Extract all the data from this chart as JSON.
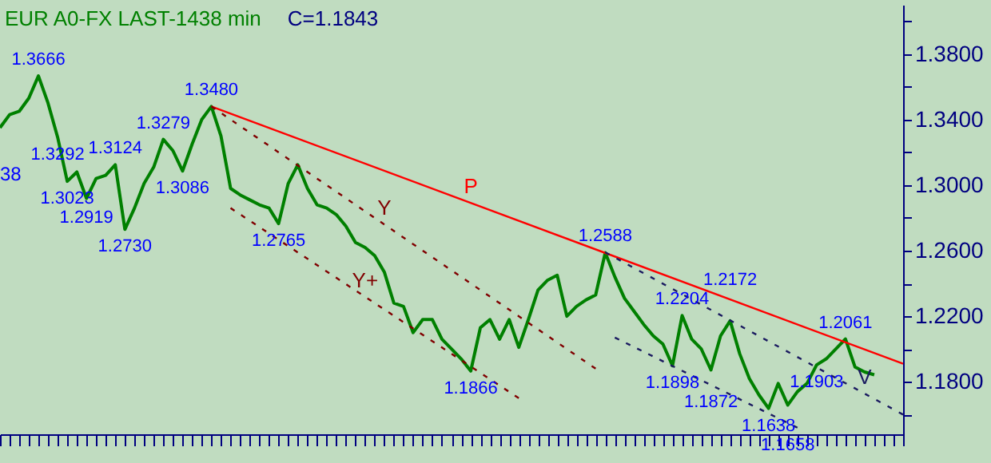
{
  "chart_data": {
    "type": "line",
    "title": "EUR A0-FX LAST-1438 min",
    "subtitle": "C=1.1843",
    "categories": [
      null,
      null,
      null,
      null,
      null,
      null,
      null,
      null,
      null,
      null,
      null,
      null,
      null,
      null,
      null,
      null,
      null,
      null,
      null,
      null,
      null,
      null,
      null,
      null,
      null,
      null,
      null,
      null,
      null,
      null,
      null,
      null,
      null,
      null,
      null,
      null,
      null,
      null,
      null,
      null,
      null,
      null,
      null,
      null,
      null,
      null,
      null,
      null,
      null,
      null,
      null,
      null,
      null,
      null,
      null,
      null,
      null,
      null,
      null,
      null,
      null,
      null,
      null,
      null,
      null,
      null,
      null,
      null,
      null,
      null,
      null,
      null,
      null,
      null,
      null,
      null,
      null,
      null,
      null,
      null,
      null,
      null,
      null,
      null,
      null,
      null,
      null,
      null,
      null,
      null,
      null,
      null,
      null,
      null,
      null
    ],
    "series": [
      {
        "color": "#008000",
        "values": [
          1.335,
          1.343,
          1.345,
          1.353,
          1.3666,
          1.35,
          1.3292,
          1.3023,
          1.308,
          1.2919,
          1.304,
          1.306,
          1.3124,
          1.273,
          1.286,
          1.301,
          1.311,
          1.3279,
          1.321,
          1.3086,
          1.325,
          1.34,
          1.348,
          1.33,
          1.298,
          1.294,
          1.291,
          1.288,
          1.286,
          1.2765,
          1.301,
          1.3124,
          1.298,
          1.288,
          1.286,
          1.282,
          1.275,
          1.265,
          1.262,
          1.257,
          1.247,
          1.228,
          1.226,
          1.21,
          1.218,
          1.218,
          1.206,
          1.2,
          1.194,
          1.1866,
          1.213,
          1.218,
          1.206,
          1.218,
          1.201,
          1.218,
          1.236,
          1.242,
          1.245,
          1.22,
          1.226,
          1.23,
          1.233,
          1.2588,
          1.244,
          1.231,
          1.223,
          1.215,
          1.208,
          1.203,
          1.1898,
          1.2204,
          1.206,
          1.2,
          1.1872,
          1.208,
          1.2172,
          1.197,
          1.182,
          1.172,
          1.1638,
          1.179,
          1.1658,
          1.174,
          1.179,
          1.1903,
          1.194,
          1.2,
          1.2061,
          1.189,
          1.186,
          1.1843,
          null,
          null,
          null
        ]
      },
      {
        "name": "P",
        "color": "#ff0000",
        "line_style": "solid",
        "values": [
          null,
          null,
          null,
          null,
          null,
          null,
          null,
          null,
          null,
          null,
          null,
          null,
          null,
          null,
          null,
          null,
          null,
          null,
          null,
          null,
          null,
          null,
          1.348,
          null,
          null,
          null,
          null,
          null,
          null,
          null,
          null,
          null,
          null,
          null,
          null,
          null,
          null,
          null,
          null,
          null,
          null,
          null,
          null,
          null,
          null,
          null,
          null,
          null,
          null,
          null,
          null,
          null,
          null,
          null,
          null,
          null,
          null,
          null,
          null,
          null,
          null,
          null,
          null,
          null,
          null,
          null,
          null,
          null,
          null,
          null,
          null,
          null,
          null,
          null,
          null,
          null,
          null,
          null,
          null,
          null,
          null,
          null,
          null,
          null,
          null,
          null,
          null,
          null,
          null,
          null,
          null,
          null,
          null,
          null,
          1.191
        ]
      },
      {
        "name": "Y",
        "color": "#800000",
        "line_style": "dashed",
        "values": [
          null,
          null,
          null,
          null,
          null,
          null,
          null,
          null,
          null,
          null,
          null,
          null,
          null,
          null,
          null,
          null,
          null,
          null,
          null,
          null,
          null,
          null,
          1.348,
          null,
          null,
          null,
          null,
          null,
          null,
          null,
          null,
          null,
          null,
          null,
          null,
          null,
          null,
          null,
          null,
          null,
          null,
          null,
          null,
          null,
          null,
          null,
          null,
          null,
          null,
          null,
          null,
          null,
          null,
          null,
          null,
          null,
          null,
          null,
          null,
          null,
          null,
          null,
          1.188,
          null,
          null,
          null,
          null,
          null,
          null,
          null,
          null,
          null,
          null,
          null,
          null,
          null,
          null,
          null,
          null,
          null,
          null,
          null,
          null,
          null,
          null,
          null,
          null,
          null,
          null,
          null,
          null,
          null,
          null,
          null,
          null
        ]
      },
      {
        "name": "Y+",
        "color": "#800000",
        "line_style": "dashed",
        "values": [
          null,
          null,
          null,
          null,
          null,
          null,
          null,
          null,
          null,
          null,
          null,
          null,
          null,
          null,
          null,
          null,
          null,
          null,
          null,
          null,
          null,
          null,
          null,
          null,
          1.286,
          null,
          null,
          null,
          null,
          null,
          null,
          null,
          null,
          null,
          null,
          null,
          null,
          null,
          null,
          null,
          null,
          null,
          null,
          null,
          null,
          null,
          null,
          null,
          null,
          null,
          null,
          null,
          null,
          null,
          1.17,
          null,
          null,
          null,
          null,
          null,
          null,
          null,
          null,
          null,
          null,
          null,
          null,
          null,
          null,
          null,
          null,
          null,
          null,
          null,
          null,
          null,
          null,
          null,
          null,
          null,
          null,
          null,
          null,
          null,
          null,
          null,
          null,
          null,
          null,
          null,
          null,
          null,
          null,
          null,
          null
        ]
      },
      {
        "name": "V",
        "color": "#1a1a60",
        "line_style": "dashed",
        "values": [
          null,
          null,
          null,
          null,
          null,
          null,
          null,
          null,
          null,
          null,
          null,
          null,
          null,
          null,
          null,
          null,
          null,
          null,
          null,
          null,
          null,
          null,
          null,
          null,
          null,
          null,
          null,
          null,
          null,
          null,
          null,
          null,
          null,
          null,
          null,
          null,
          null,
          null,
          null,
          null,
          null,
          null,
          null,
          null,
          null,
          null,
          null,
          null,
          null,
          null,
          null,
          null,
          null,
          null,
          null,
          null,
          null,
          null,
          null,
          null,
          null,
          null,
          null,
          1.259,
          null,
          null,
          null,
          null,
          null,
          null,
          null,
          null,
          null,
          null,
          null,
          null,
          null,
          null,
          null,
          null,
          null,
          null,
          null,
          null,
          null,
          null,
          null,
          null,
          null,
          null,
          null,
          null,
          null,
          null,
          1.16
        ]
      },
      {
        "color": "#1a1a60",
        "line_style": "dashed",
        "values": [
          null,
          null,
          null,
          null,
          null,
          null,
          null,
          null,
          null,
          null,
          null,
          null,
          null,
          null,
          null,
          null,
          null,
          null,
          null,
          null,
          null,
          null,
          null,
          null,
          null,
          null,
          null,
          null,
          null,
          null,
          null,
          null,
          null,
          null,
          null,
          null,
          null,
          null,
          null,
          null,
          null,
          null,
          null,
          null,
          null,
          null,
          null,
          null,
          null,
          null,
          null,
          null,
          null,
          null,
          null,
          null,
          null,
          null,
          null,
          null,
          null,
          null,
          null,
          null,
          1.207,
          null,
          null,
          null,
          null,
          null,
          null,
          null,
          null,
          null,
          null,
          null,
          null,
          null,
          null,
          null,
          null,
          null,
          null,
          1.152,
          null,
          null,
          null,
          null,
          null,
          null,
          null,
          null,
          null,
          null,
          null
        ]
      }
    ],
    "annotations": [
      {
        "text": "1.3666",
        "y": 1.3666
      },
      {
        "text": "1.3292",
        "y": 1.3292
      },
      {
        "text": "1.3023",
        "y": 1.3023
      },
      {
        "text": "1.3124",
        "y": 1.3124
      },
      {
        "text": "1.2919",
        "y": 1.2919
      },
      {
        "text": "1.2730",
        "y": 1.273
      },
      {
        "text": "1.3279",
        "y": 1.3279
      },
      {
        "text": "1.3086",
        "y": 1.3086
      },
      {
        "text": "1.3480",
        "y": 1.348
      },
      {
        "text": "1.2765",
        "y": 1.2765
      },
      {
        "text": "1.1866",
        "y": 1.1866
      },
      {
        "text": "1.2588",
        "y": 1.2588
      },
      {
        "text": "1.1898",
        "y": 1.1898
      },
      {
        "text": "1.2204",
        "y": 1.2204
      },
      {
        "text": "1.1872",
        "y": 1.1872
      },
      {
        "text": "1.2172",
        "y": 1.2172
      },
      {
        "text": "1.1638",
        "y": 1.1638
      },
      {
        "text": "1.1658",
        "y": 1.1658
      },
      {
        "text": "1.1903",
        "y": 1.1903
      },
      {
        "text": "1.2061",
        "y": 1.2061
      },
      "38"
    ],
    "ylim": [
      1.148,
      1.41
    ],
    "yticks": [
      {
        "value": 1.16,
        "label": null
      },
      {
        "value": 1.18,
        "label": "1.1800"
      },
      {
        "value": 1.2,
        "label": null
      },
      {
        "value": 1.22,
        "label": "1.2200"
      },
      {
        "value": 1.24,
        "label": null
      },
      {
        "value": 1.26,
        "label": "1.2600"
      },
      {
        "value": 1.28,
        "label": null
      },
      {
        "value": 1.3,
        "label": "1.3000"
      },
      {
        "value": 1.32,
        "label": null
      },
      {
        "value": 1.34,
        "label": "1.3400"
      },
      {
        "value": 1.36,
        "label": null
      },
      {
        "value": 1.38,
        "label": "1.3800"
      },
      {
        "value": 1.4,
        "label": null
      }
    ],
    "tick_labels": "y"
  }
}
